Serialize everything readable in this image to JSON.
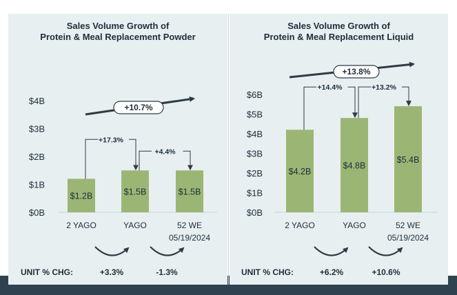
{
  "chart_data": [
    {
      "type": "bar",
      "title_line1": "Sales Volume Growth of",
      "title_line2": "Protein & Meal Replacement Powder",
      "categories": [
        "2 YAGO",
        "YAGO",
        "52 WE"
      ],
      "category_sub": [
        "",
        "",
        "05/19/2024"
      ],
      "values": [
        1.2,
        1.5,
        1.5
      ],
      "value_labels": [
        "$1.2B",
        "$1.5B",
        "$1.5B"
      ],
      "yticks": [
        "$0B",
        "$1B",
        "$2B",
        "$3B",
        "$4B"
      ],
      "ylim": [
        0,
        4
      ],
      "bar_color": "#9bb674",
      "period_changes": [
        "+17.3%",
        "+4.4%"
      ],
      "overall_change": "+10.7%",
      "unit_label": "UNIT % CHG:",
      "unit_changes": [
        "+3.3%",
        "-1.3%"
      ]
    },
    {
      "type": "bar",
      "title_line1": "Sales Volume Growth of",
      "title_line2": "Protein & Meal Replacement Liquid",
      "categories": [
        "2 YAGO",
        "YAGO",
        "52 WE"
      ],
      "category_sub": [
        "",
        "",
        "05/19/2024"
      ],
      "values": [
        4.2,
        4.8,
        5.4
      ],
      "value_labels": [
        "$4.2B",
        "$4.8B",
        "$5.4B"
      ],
      "yticks": [
        "$0B",
        "$1B",
        "$2B",
        "$3B",
        "$4B",
        "$5B",
        "$6B"
      ],
      "ylim": [
        0,
        6
      ],
      "bar_color": "#9bb674",
      "period_changes": [
        "+14.4%",
        "+13.2%"
      ],
      "overall_change": "+13.8%",
      "unit_label": "UNIT % CHG:",
      "unit_changes": [
        "+6.2%",
        "+10.6%"
      ]
    }
  ]
}
